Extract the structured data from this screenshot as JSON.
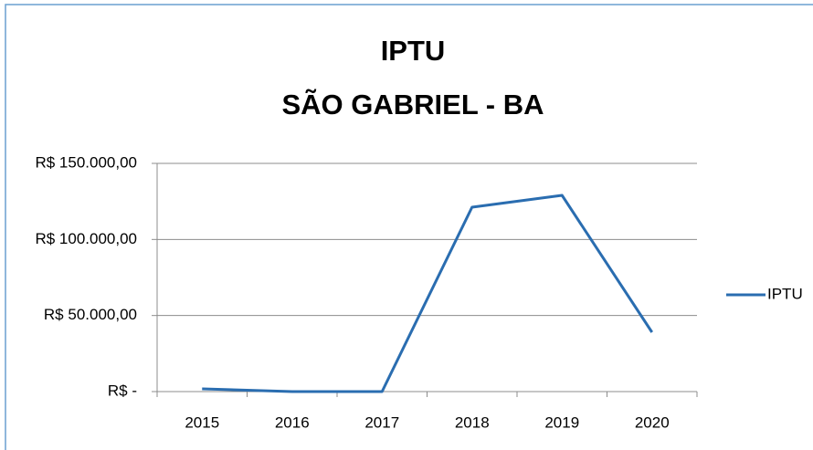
{
  "chart_data": {
    "type": "line",
    "title": "IPTU",
    "subtitle": "SÃO GABRIEL - BA",
    "categories": [
      "2015",
      "2016",
      "2017",
      "2018",
      "2019",
      "2020"
    ],
    "series": [
      {
        "name": "IPTU",
        "color": "#2a6db0",
        "values": [
          1800,
          0,
          0,
          121200,
          129000,
          39000
        ]
      }
    ],
    "ylim": [
      0,
      150000
    ],
    "yticks": [
      {
        "value": 0,
        "label": "R$ -"
      },
      {
        "value": 50000,
        "label": "R$ 50.000,00"
      },
      {
        "value": 100000,
        "label": "R$ 100.000,00"
      },
      {
        "value": 150000,
        "label": "R$ 150.000,00"
      }
    ],
    "grid": true,
    "legend": "right"
  }
}
